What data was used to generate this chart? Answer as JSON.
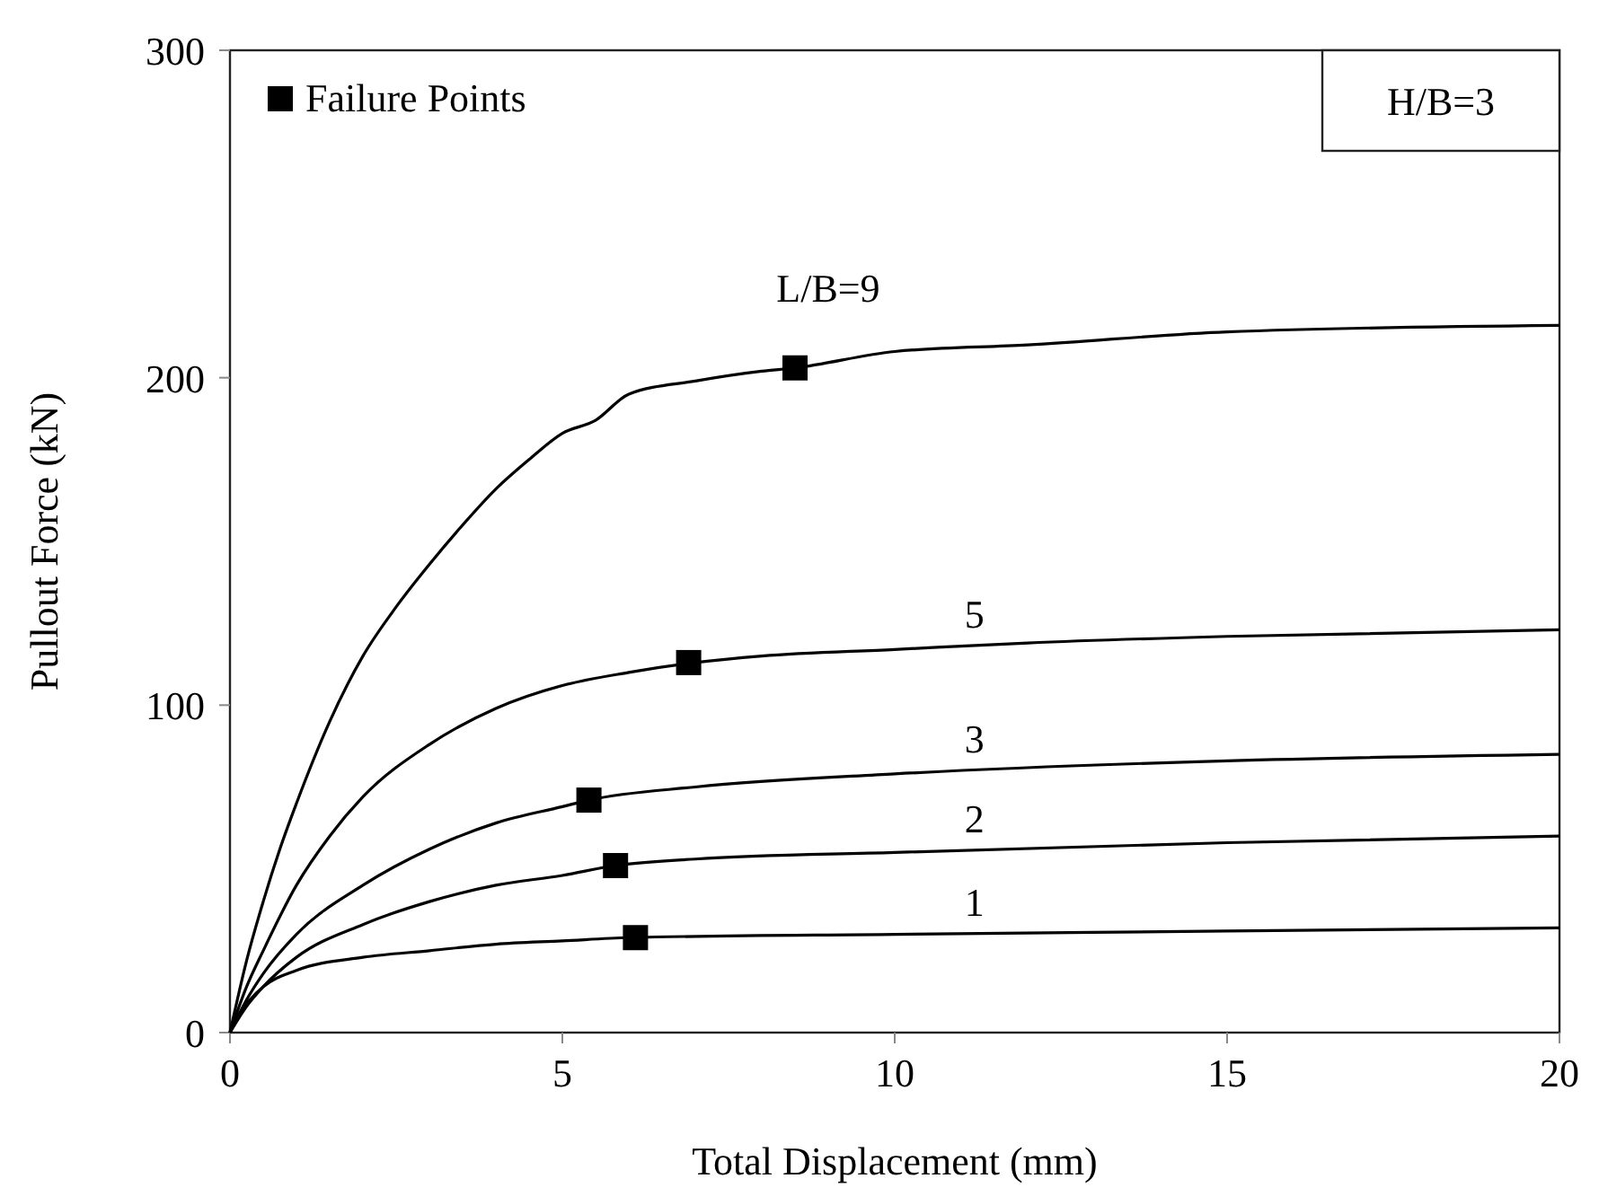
{
  "chart_data": {
    "type": "line",
    "xlabel": "Total Displacement  (mm)",
    "ylabel": "Pullout  Force (kN)",
    "xlim": [
      0,
      20
    ],
    "ylim": [
      0,
      300
    ],
    "xticks": [
      0,
      5,
      10,
      15,
      20
    ],
    "yticks": [
      0,
      100,
      200,
      300
    ],
    "grid": false,
    "legend": "top left",
    "line_style": "solid",
    "series": [
      {
        "name": "L/B=9",
        "color": "#000000",
        "x": [
          0,
          0.25,
          0.5,
          0.75,
          1,
          1.5,
          2,
          2.5,
          3,
          3.5,
          4,
          4.5,
          5,
          5.5,
          6,
          7,
          8,
          8.5,
          10,
          12,
          15,
          20
        ],
        "values": [
          0,
          22,
          40,
          56,
          70,
          95,
          115,
          130,
          143,
          155,
          166,
          175,
          183,
          187,
          195,
          199,
          202,
          203,
          208,
          210,
          214,
          216
        ]
      },
      {
        "name": "5",
        "color": "#000000",
        "x": [
          0,
          0.25,
          0.5,
          1,
          1.5,
          2,
          3,
          4,
          5,
          6,
          7,
          8,
          10,
          12,
          15,
          20
        ],
        "values": [
          0,
          14,
          25,
          45,
          60,
          72,
          88,
          99,
          106,
          110,
          113,
          115,
          117,
          119,
          121,
          123
        ]
      },
      {
        "name": "3",
        "color": "#000000",
        "x": [
          0,
          0.25,
          0.5,
          1,
          2,
          3,
          4,
          5,
          5.4,
          7,
          10,
          15,
          20
        ],
        "values": [
          0,
          10,
          18,
          30,
          45,
          56,
          64,
          69,
          71,
          75,
          79,
          83,
          85
        ]
      },
      {
        "name": "2",
        "color": "#000000",
        "x": [
          0,
          0.25,
          0.5,
          1,
          2,
          3,
          4,
          5,
          5.8,
          7,
          10,
          15,
          20
        ],
        "values": [
          0,
          8,
          14,
          23,
          33,
          40,
          45,
          48,
          51,
          53,
          55,
          58,
          60
        ]
      },
      {
        "name": "1",
        "color": "#000000",
        "x": [
          0,
          0.15,
          0.3,
          0.5,
          1,
          2,
          3,
          4,
          5,
          6,
          10,
          15,
          20
        ],
        "values": [
          0,
          6,
          10,
          14,
          19,
          23,
          25,
          27,
          28,
          29,
          30,
          31,
          32
        ]
      },
      {
        "type": "scatter",
        "name": "Failure Points",
        "marker": "square",
        "color": "#000000",
        "x": [
          8.5,
          6.9,
          5.4,
          5.8,
          6.1
        ],
        "values": [
          203,
          113,
          71,
          51,
          29
        ]
      }
    ],
    "annotations": [
      "H/B=3"
    ]
  }
}
